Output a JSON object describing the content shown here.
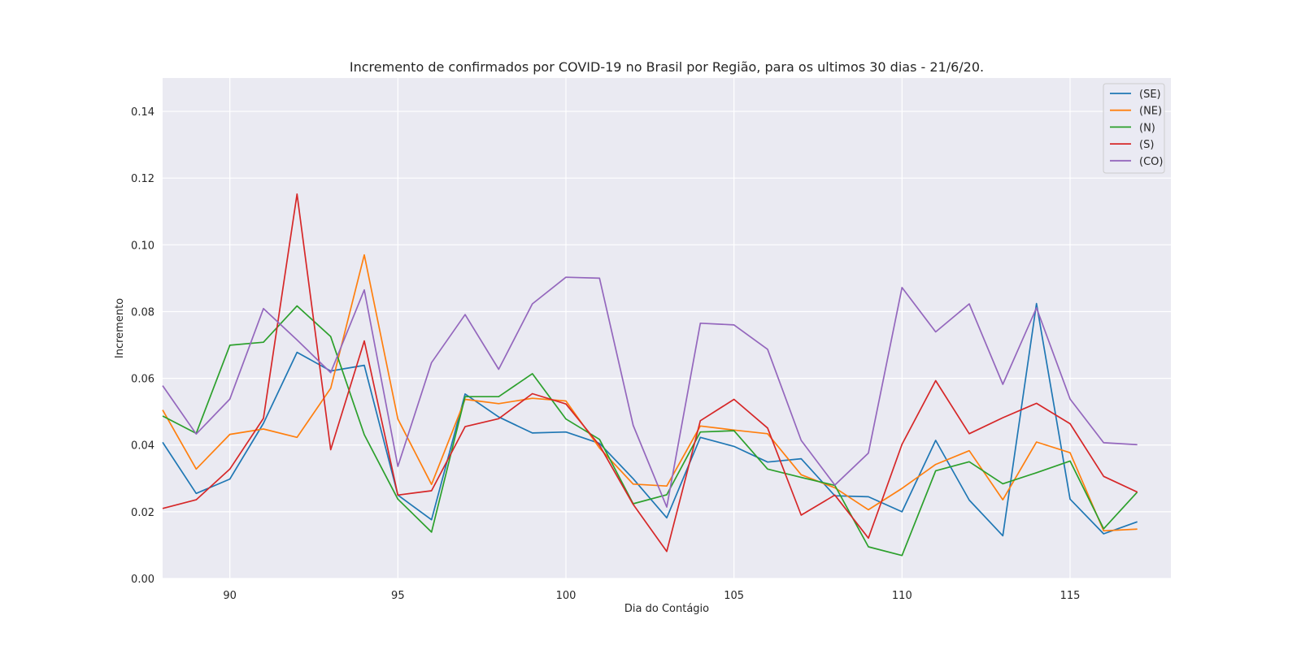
{
  "chart_data": {
    "type": "line",
    "title": "Incremento de confirmados por COVID-19 no Brasil por Região, para os ultimos 30 dias - 21/6/20.",
    "xlabel": "Dia do Contágio",
    "ylabel": "Incremento",
    "xlim": [
      88,
      118
    ],
    "ylim": [
      0,
      0.15
    ],
    "xticks": [
      90,
      95,
      100,
      105,
      110,
      115
    ],
    "yticks": [
      "0.00",
      "0.02",
      "0.04",
      "0.06",
      "0.08",
      "0.10",
      "0.12",
      "0.14"
    ],
    "grid": true,
    "legend_position": "top-right",
    "x": [
      88,
      89,
      90,
      91,
      92,
      93,
      94,
      95,
      96,
      97,
      98,
      99,
      100,
      101,
      102,
      103,
      104,
      105,
      106,
      107,
      108,
      109,
      110,
      111,
      112,
      113,
      114,
      115,
      116,
      117
    ],
    "series": [
      {
        "name": "(SE)",
        "color": "#1f77b4",
        "values": [
          0.0408,
          0.0255,
          0.0298,
          0.0465,
          0.0678,
          0.0622,
          0.0639,
          0.025,
          0.0176,
          0.0553,
          0.0484,
          0.0436,
          0.0439,
          0.0405,
          0.0299,
          0.0182,
          0.0423,
          0.0396,
          0.0349,
          0.0359,
          0.0248,
          0.0245,
          0.02,
          0.0414,
          0.0235,
          0.0128,
          0.0824,
          0.0238,
          0.0134,
          0.017
        ]
      },
      {
        "name": "(NE)",
        "color": "#ff7f0e",
        "values": [
          0.0505,
          0.0328,
          0.0432,
          0.0448,
          0.0423,
          0.057,
          0.097,
          0.0478,
          0.0282,
          0.0537,
          0.0524,
          0.054,
          0.0532,
          0.0391,
          0.0283,
          0.0277,
          0.0457,
          0.0445,
          0.0434,
          0.0311,
          0.0272,
          0.0206,
          0.027,
          0.0342,
          0.0383,
          0.0236,
          0.0409,
          0.0377,
          0.0143,
          0.0148
        ]
      },
      {
        "name": "(N)",
        "color": "#2ca02c",
        "values": [
          0.0487,
          0.0435,
          0.0699,
          0.0708,
          0.0817,
          0.0725,
          0.0431,
          0.0238,
          0.0139,
          0.0545,
          0.0545,
          0.0614,
          0.0478,
          0.0417,
          0.0224,
          0.0251,
          0.0439,
          0.0443,
          0.0328,
          0.0303,
          0.0279,
          0.0095,
          0.0069,
          0.0323,
          0.035,
          0.0284,
          0.0317,
          0.0352,
          0.0149,
          0.0259
        ]
      },
      {
        "name": "(S)",
        "color": "#d62728",
        "values": [
          0.021,
          0.0236,
          0.0328,
          0.048,
          0.1152,
          0.0386,
          0.0712,
          0.025,
          0.0263,
          0.0455,
          0.0479,
          0.0554,
          0.0523,
          0.0399,
          0.0222,
          0.0081,
          0.0473,
          0.0537,
          0.0451,
          0.019,
          0.025,
          0.0121,
          0.0402,
          0.0593,
          0.0434,
          0.0482,
          0.0525,
          0.0464,
          0.0306,
          0.0259
        ]
      },
      {
        "name": "(CO)",
        "color": "#9467bd",
        "values": [
          0.0578,
          0.0433,
          0.0538,
          0.0809,
          0.0715,
          0.0617,
          0.0865,
          0.0336,
          0.0647,
          0.0791,
          0.0627,
          0.0823,
          0.0903,
          0.09,
          0.0459,
          0.0214,
          0.0765,
          0.076,
          0.0687,
          0.0414,
          0.028,
          0.0376,
          0.0872,
          0.0739,
          0.0823,
          0.0582,
          0.0811,
          0.0538,
          0.0407,
          0.0401
        ]
      }
    ]
  }
}
